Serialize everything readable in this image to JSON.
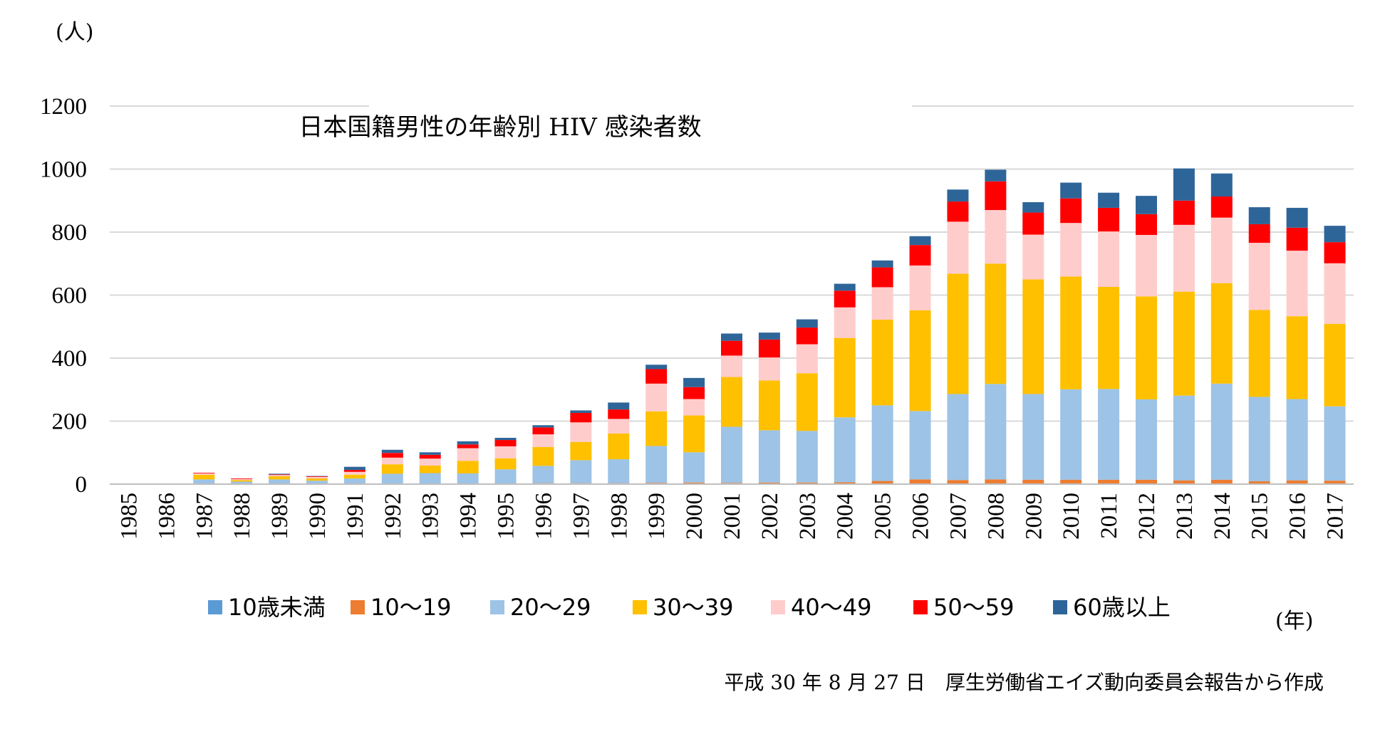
{
  "chart_data": {
    "type": "bar",
    "stacked": true,
    "title": "日本国籍男性の年齢別 HIV 感染者数",
    "ylabel": "(人)",
    "xlabel": "(年)",
    "ylim": [
      0,
      1200
    ],
    "yticks": [
      "0",
      "200",
      "400",
      "600",
      "800",
      "1000",
      "1200"
    ],
    "ytick_values": [
      0,
      200,
      400,
      600,
      800,
      1000,
      1200
    ],
    "grid": "horizontal",
    "legend_position": "bottom",
    "categories": [
      "1985",
      "1986",
      "1987",
      "1988",
      "1989",
      "1990",
      "1991",
      "1992",
      "1993",
      "1994",
      "1995",
      "1996",
      "1997",
      "1998",
      "1999",
      "2000",
      "2001",
      "2002",
      "2003",
      "2004",
      "2005",
      "2006",
      "2007",
      "2008",
      "2009",
      "2010",
      "2011",
      "2012",
      "2013",
      "2014",
      "2015",
      "2016",
      "2017"
    ],
    "series": [
      {
        "name": "10歳未満",
        "color": "#5B9BD5",
        "values": [
          0,
          0,
          0,
          0,
          0,
          0,
          0,
          0,
          0,
          0,
          0,
          0,
          0,
          0,
          0,
          0,
          0,
          0,
          0,
          0,
          1,
          1,
          1,
          1,
          1,
          1,
          1,
          1,
          1,
          1,
          0,
          1,
          1
        ]
      },
      {
        "name": "10～19",
        "color": "#ED7D31",
        "values": [
          0,
          0,
          2,
          1,
          1,
          1,
          2,
          2,
          2,
          2,
          2,
          3,
          3,
          3,
          4,
          5,
          4,
          5,
          5,
          6,
          9,
          14,
          12,
          14,
          13,
          13,
          13,
          13,
          11,
          13,
          9,
          11,
          10
        ]
      },
      {
        "name": "20～29",
        "color": "#9DC3E6",
        "values": [
          0,
          0,
          13,
          7,
          14,
          10,
          16,
          31,
          33,
          32,
          45,
          55,
          73,
          76,
          117,
          96,
          178,
          166,
          164,
          206,
          240,
          217,
          273,
          303,
          272,
          287,
          288,
          255,
          269,
          305,
          268,
          258,
          236
        ]
      },
      {
        "name": "30～39",
        "color": "#FFC000",
        "values": [
          0,
          0,
          15,
          5,
          10,
          7,
          12,
          30,
          24,
          40,
          35,
          60,
          58,
          82,
          110,
          117,
          158,
          158,
          183,
          252,
          272,
          320,
          382,
          382,
          364,
          358,
          324,
          327,
          330,
          319,
          276,
          263,
          262
        ]
      },
      {
        "name": "40～49",
        "color": "#FFCCCC",
        "values": [
          0,
          0,
          4,
          3,
          4,
          5,
          9,
          21,
          22,
          40,
          38,
          40,
          62,
          46,
          88,
          52,
          68,
          73,
          92,
          97,
          103,
          142,
          165,
          170,
          142,
          170,
          176,
          195,
          212,
          208,
          213,
          208,
          192
        ]
      },
      {
        "name": "50～59",
        "color": "#FF0000",
        "values": [
          0,
          0,
          2,
          2,
          2,
          2,
          6,
          15,
          12,
          12,
          20,
          22,
          30,
          30,
          46,
          38,
          47,
          57,
          53,
          53,
          63,
          65,
          64,
          91,
          70,
          78,
          75,
          66,
          77,
          67,
          59,
          73,
          67
        ]
      },
      {
        "name": "60歳以上",
        "color": "#2E6599",
        "values": [
          0,
          0,
          0,
          0,
          2,
          1,
          10,
          10,
          8,
          10,
          7,
          7,
          8,
          22,
          14,
          29,
          23,
          22,
          26,
          22,
          22,
          28,
          38,
          37,
          33,
          50,
          48,
          58,
          102,
          73,
          54,
          63,
          52
        ]
      }
    ]
  },
  "source_note": "平成 30 年 8 月 27 日　厚生労働省エイズ動向委員会報告から作成"
}
